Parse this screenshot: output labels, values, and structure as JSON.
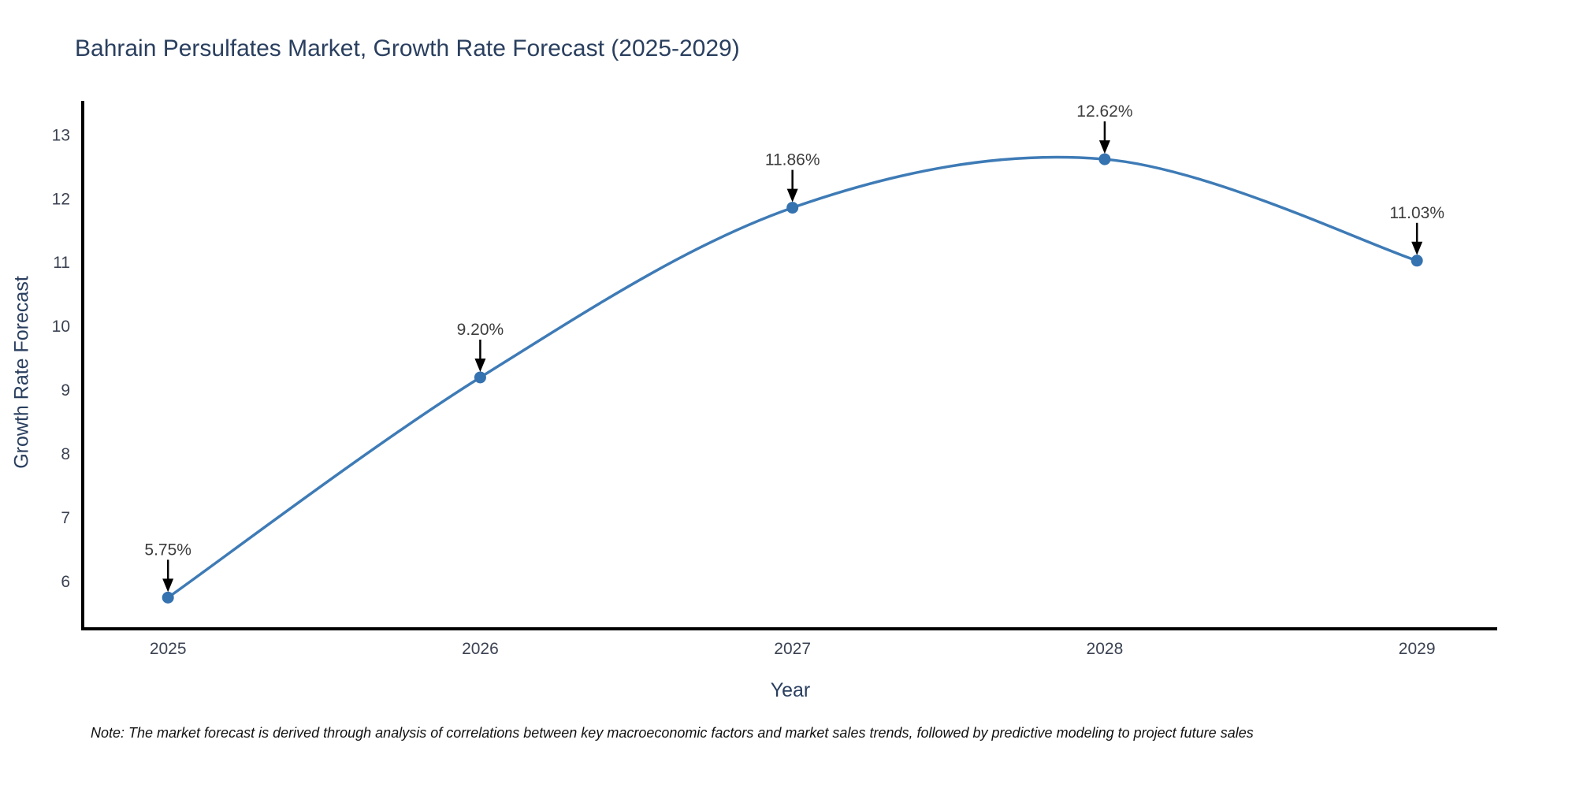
{
  "title": "Bahrain Persulfates Market, Growth Rate Forecast (2025-2029)",
  "note": "Note: The market forecast is derived through analysis of correlations between key macroeconomic factors and market sales trends, followed by predictive modeling to project future sales",
  "chart_data": {
    "type": "line",
    "title": "Bahrain Persulfates Market, Growth Rate Forecast (2025-2029)",
    "xlabel": "Year",
    "ylabel": "Growth Rate Forecast",
    "x": [
      2025,
      2026,
      2027,
      2028,
      2029
    ],
    "y": [
      5.75,
      9.2,
      11.86,
      12.62,
      11.03
    ],
    "point_labels": [
      "5.75%",
      "9.20%",
      "11.86%",
      "12.62%",
      "11.03%"
    ],
    "x_tick_labels": [
      "2025",
      "2026",
      "2027",
      "2028",
      "2029"
    ],
    "y_ticks": [
      6,
      7,
      8,
      9,
      10,
      11,
      12,
      13
    ],
    "xlim": [
      2024.727,
      2029.257
    ],
    "ylim": [
      5.26,
      13.51
    ],
    "line_shape": "spline",
    "markers": true,
    "grid": false,
    "legend": "none",
    "annotations_arrow": "down",
    "colors": {
      "line": "#3e7bb6",
      "marker": "#3572b0",
      "axis": "#000000",
      "title": "#2a3f5f",
      "axis_title": "#2a3f5f",
      "tick_label": "#3b4252",
      "annotation_text": "#3d3d3d",
      "arrow": "#000000",
      "note_text": "#111111",
      "background": "#ffffff"
    }
  }
}
